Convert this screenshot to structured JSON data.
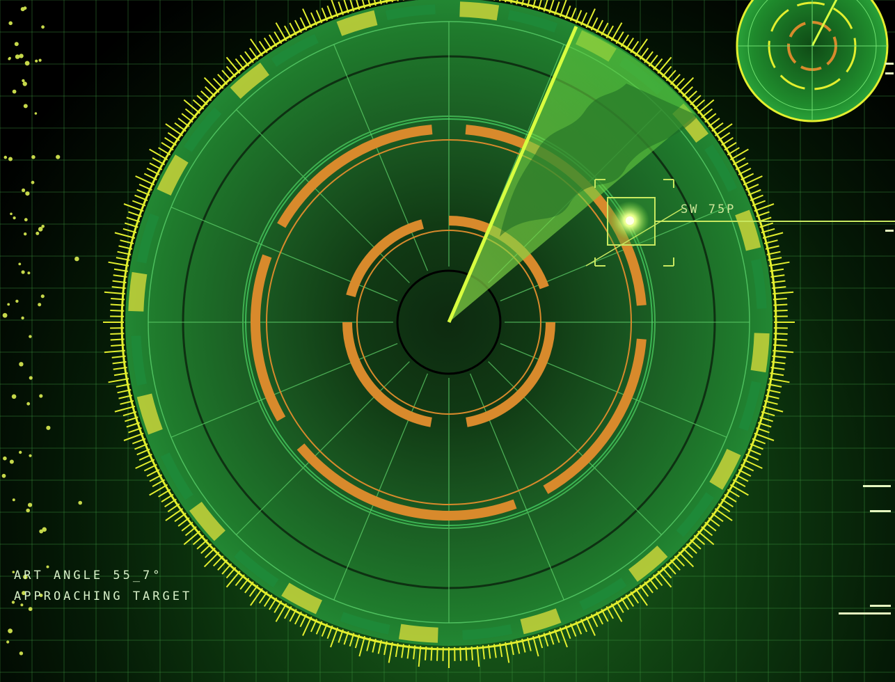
{
  "scene": {
    "description_visible": false
  },
  "overlay_text": {
    "angle_line": "ART ANGLE 55_7°",
    "status_line": "APPROACHING TARGET",
    "target_label": "SW 75P"
  },
  "colors": {
    "radar_green": "#1e7a2a",
    "grid_green": "#3fa34a",
    "ring_orange": "#d88a2c",
    "tick_yellow": "#e3ef2f",
    "sweep_lime": "#b6ea3a",
    "blip": "#f4ffb0"
  },
  "icons": {
    "main_radar": "radar-scope-icon",
    "mini_radar": "mini-radar-icon",
    "target_marker": "target-lock-icon"
  }
}
